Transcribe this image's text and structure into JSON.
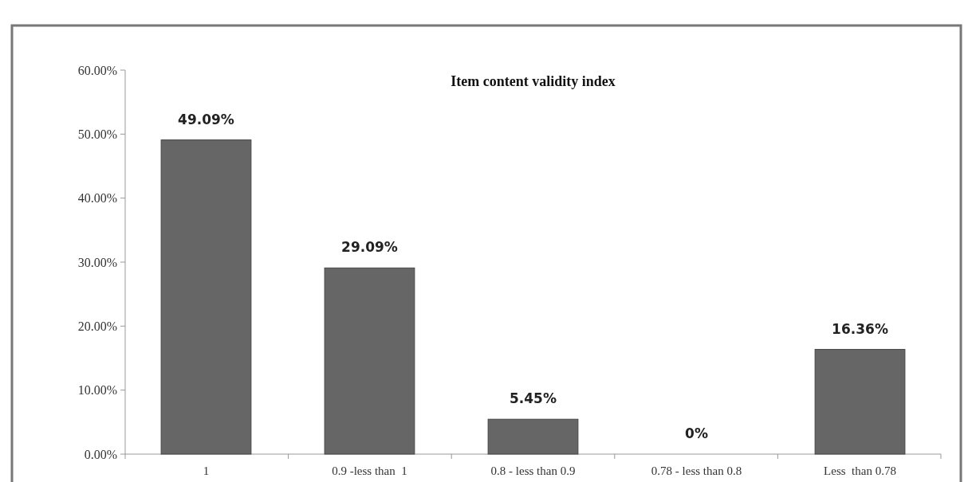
{
  "chart_data": {
    "type": "bar",
    "title": "Item content validity index",
    "categories": [
      "1",
      "0.9 -less than  1",
      "0.8 - less than 0.9",
      "0.78 - less than 0.8",
      "Less  than 0.78"
    ],
    "values": [
      49.09,
      29.09,
      5.45,
      0,
      16.36
    ],
    "value_labels": [
      "49.09%",
      "29.09%",
      "5.45%",
      "0%",
      "16.36%"
    ],
    "color": "#666666",
    "ylim": [
      0,
      60
    ],
    "yticks": [
      {
        "value": 0,
        "label": "0.00%"
      },
      {
        "value": 10,
        "label": "10.00%"
      },
      {
        "value": 20,
        "label": "20.00%"
      },
      {
        "value": 30,
        "label": "30.00%"
      },
      {
        "value": 40,
        "label": "40.00%"
      },
      {
        "value": 50,
        "label": "50.00%"
      },
      {
        "value": 60,
        "label": "60.00%"
      }
    ],
    "grid": false
  }
}
